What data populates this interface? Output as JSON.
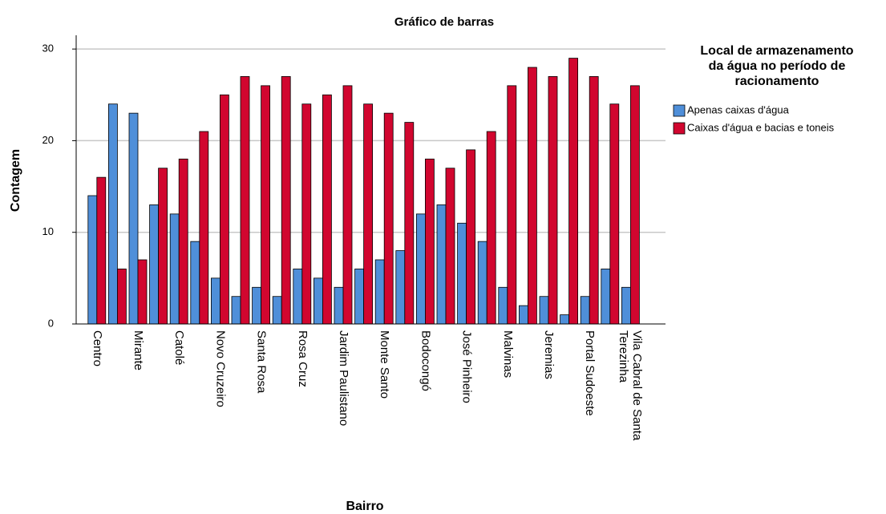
{
  "chart_data": {
    "type": "bar",
    "title": "Gráfico de barras",
    "x_label": "Bairro",
    "y_label": "Contagem",
    "legend_title": "Local de armazenamento da água no período de racionamento",
    "categories": [
      "Centro",
      null,
      "Mirante",
      null,
      "Catolé",
      null,
      "Novo Cruzeiro",
      null,
      "Santa Rosa",
      null,
      "Rosa Cruz",
      null,
      "Jardim Paulistano",
      null,
      "Monte Santo",
      null,
      "Bodocongó",
      null,
      "José Pinheiro",
      null,
      "Malvinas",
      null,
      "Jeremias",
      null,
      "Portal Sudoeste",
      null,
      "Vila Cabral de Santa Terezinha"
    ],
    "series": [
      {
        "name": "Apenas caixas d'água",
        "color": "#4f8fd9",
        "values": [
          14,
          24,
          23,
          13,
          12,
          9,
          5,
          3,
          4,
          3,
          6,
          5,
          4,
          6,
          7,
          8,
          12,
          13,
          11,
          9,
          4,
          2,
          3,
          1,
          3,
          6,
          4
        ]
      },
      {
        "name": "Caixas d'água e bacias e toneis",
        "color": "#d1062f",
        "values": [
          16,
          6,
          7,
          17,
          18,
          21,
          25,
          27,
          26,
          27,
          24,
          25,
          26,
          24,
          23,
          22,
          18,
          17,
          19,
          21,
          26,
          28,
          27,
          29,
          27,
          24,
          26
        ]
      }
    ],
    "ylim": [
      0,
      31.5
    ],
    "yticks": [
      0,
      10,
      20,
      30
    ],
    "grid": true,
    "legend": "right"
  }
}
